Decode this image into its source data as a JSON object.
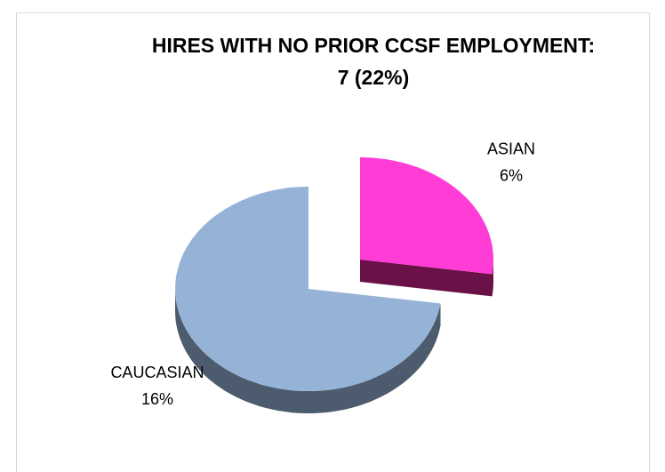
{
  "chart_data": {
    "type": "pie",
    "title": [
      "HIRES WITH NO PRIOR CCSF EMPLOYMENT:",
      "7 (22%)"
    ],
    "categories": [
      "ASIAN",
      "CAUCASIAN"
    ],
    "values": [
      6,
      16
    ],
    "value_labels": [
      "6%",
      "16%"
    ],
    "colors": [
      "#ff3dd6",
      "#95b3d7"
    ],
    "side_colors": [
      "#6a1247",
      "#4d5b6e"
    ]
  }
}
